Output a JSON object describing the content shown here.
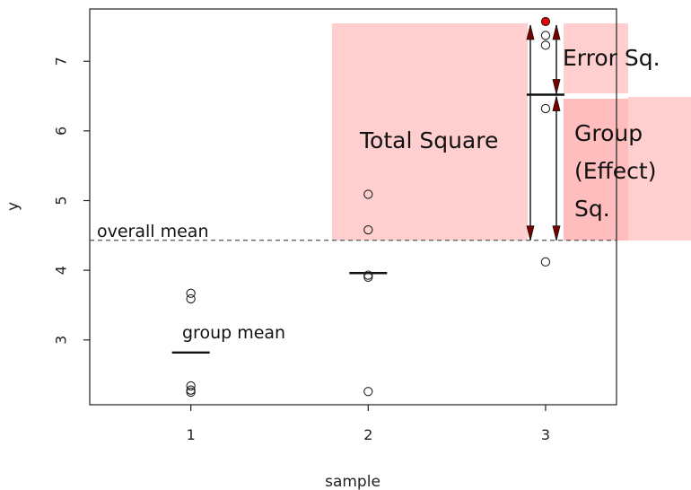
{
  "chart_data": {
    "type": "scatter",
    "xlabel": "sample",
    "ylabel": "y",
    "xlim": [
      0.43,
      3.4
    ],
    "ylim": [
      2.07,
      7.75
    ],
    "x_ticks": [
      1,
      2,
      3
    ],
    "y_ticks": [
      3,
      4,
      5,
      6,
      7
    ],
    "grid": false,
    "overall_mean": 4.43,
    "points": [
      {
        "x": 1,
        "y": 3.67
      },
      {
        "x": 1,
        "y": 3.59
      },
      {
        "x": 1,
        "y": 2.34
      },
      {
        "x": 1,
        "y": 2.28
      },
      {
        "x": 1,
        "y": 2.25
      },
      {
        "x": 2,
        "y": 5.09
      },
      {
        "x": 2,
        "y": 4.58
      },
      {
        "x": 2,
        "y": 3.93
      },
      {
        "x": 2,
        "y": 3.9
      },
      {
        "x": 2,
        "y": 2.26
      },
      {
        "x": 3,
        "y": 7.37
      },
      {
        "x": 3,
        "y": 7.23
      },
      {
        "x": 3,
        "y": 6.32
      },
      {
        "x": 3,
        "y": 4.12
      }
    ],
    "highlight_point": {
      "x": 3,
      "y": 7.57,
      "color": "#e60000"
    },
    "group_means": [
      {
        "x": 1,
        "y": 2.82
      },
      {
        "x": 2,
        "y": 3.96
      },
      {
        "x": 3,
        "y": 6.52
      }
    ],
    "annotations": {
      "overall_mean": "overall mean",
      "group_mean": "group mean",
      "total_square": "Total Square",
      "error_sq": "Error Sq.",
      "group_line1": "Group",
      "group_line2": "(Effect)",
      "group_line3": "Sq."
    },
    "colors": {
      "shade": "#ffb3b3",
      "point": "#222222",
      "highlight": "#e60000",
      "arrow": "#111111",
      "arrowhead": "#7a0000"
    }
  }
}
